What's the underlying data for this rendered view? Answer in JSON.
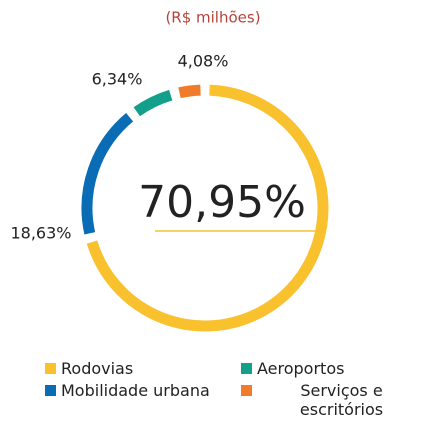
{
  "chart_data": {
    "type": "donut",
    "subtitle": "(R$ milhões)",
    "categories": [
      "Rodovias",
      "Mobilidade urbana",
      "Aeroportos",
      "Serviços e escritórios corporativos"
    ],
    "values": [
      70.95,
      18.63,
      6.34,
      4.08
    ],
    "value_labels": [
      "70,95%",
      "18,63%",
      "6,34%",
      "4,08%"
    ],
    "colors": [
      "#f9c12e",
      "#0a6cb4",
      "#12a08b",
      "#f07c2a"
    ]
  }
}
